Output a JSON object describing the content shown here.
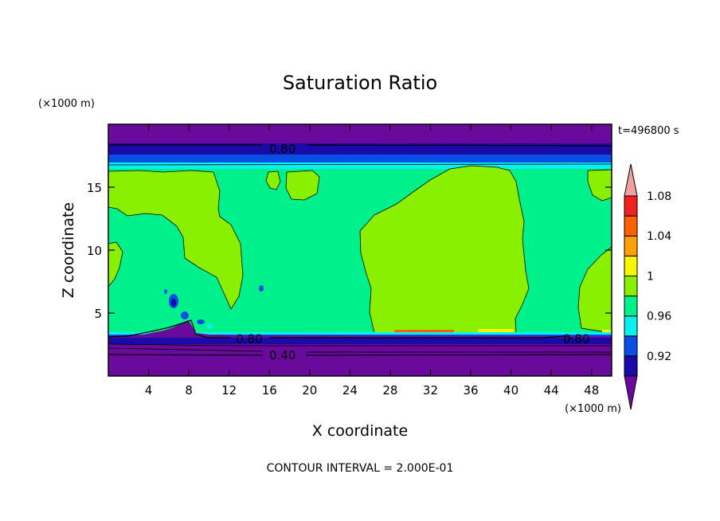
{
  "chart_data": {
    "type": "heatmap",
    "title": "Saturation Ratio",
    "time_label": "t=496800 s",
    "xlabel": "X coordinate",
    "ylabel": "Z coordinate",
    "x_unit": "(×1000 m)",
    "y_unit": "(×1000 m)",
    "footer": "CONTOUR INTERVAL = 2.000E-01",
    "xlim": [
      0,
      50
    ],
    "ylim": [
      0,
      20
    ],
    "x_ticks": [
      4,
      8,
      12,
      16,
      20,
      24,
      28,
      32,
      36,
      40,
      44,
      48
    ],
    "y_ticks": [
      5,
      10,
      15
    ],
    "contour_labels": [
      {
        "text": "0.80",
        "x": 17.3,
        "y": 18.1
      },
      {
        "text": "0.80",
        "x": 14.0,
        "y": 3.0
      },
      {
        "text": "0.80",
        "x": 46.5,
        "y": 3.0
      },
      {
        "text": "0.40",
        "x": 17.3,
        "y": 1.7
      }
    ],
    "colorbar": {
      "levels": [
        {
          "color": "#6a0a9c"
        },
        {
          "color": "#1a0aa8",
          "label": "0.92"
        },
        {
          "color": "#0a4ee6"
        },
        {
          "color": "#0af0f0",
          "label": "0.96"
        },
        {
          "color": "#00f08c"
        },
        {
          "color": "#88f000",
          "label": "1"
        },
        {
          "color": "#f6f600"
        },
        {
          "color": "#ffa000",
          "label": "1.04"
        },
        {
          "color": "#ff6000"
        },
        {
          "color": "#f02020",
          "label": "1.08"
        },
        {
          "color": "#f0a0a0"
        }
      ]
    }
  }
}
